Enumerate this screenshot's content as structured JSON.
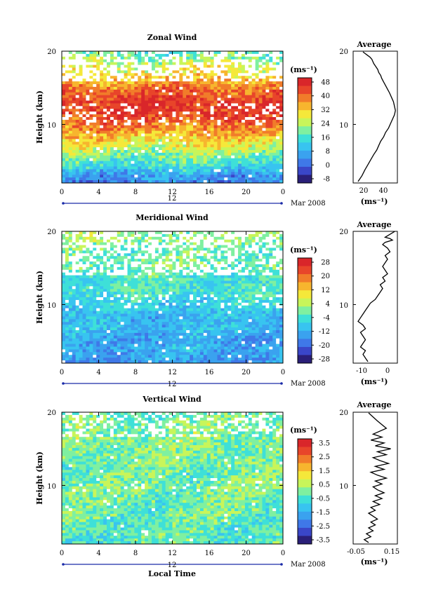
{
  "colors": {
    "palette": [
      "#2a1f78",
      "#3a46c8",
      "#3f78e8",
      "#3aa2ef",
      "#38c4f0",
      "#3ee0d8",
      "#7ff0a0",
      "#c8f55a",
      "#f5e83a",
      "#f7b52e",
      "#f17c2a",
      "#e8452a",
      "#d9262a"
    ]
  },
  "panels": [
    {
      "title": "Zonal Wind",
      "ylabel": "Height (km)",
      "yticks": [
        "20",
        "10"
      ],
      "xticks": [
        "0",
        "4",
        "8",
        "12",
        "16",
        "20",
        "0"
      ],
      "date_mid": "12",
      "date_right": "Mar 2008",
      "unit": "(ms⁻¹)",
      "cbar_ticks": [
        "48",
        "40",
        "32",
        "24",
        "16",
        "8",
        "0",
        "-8"
      ],
      "avg_title": "Average",
      "avg_xticks": [
        "20",
        "40"
      ],
      "avg_unit": "(ms⁻¹)"
    },
    {
      "title": "Meridional Wind",
      "ylabel": "Height (km)",
      "yticks": [
        "20",
        "10"
      ],
      "xticks": [
        "0",
        "4",
        "8",
        "12",
        "16",
        "20",
        "0"
      ],
      "date_mid": "12",
      "date_right": "Mar 2008",
      "unit": "(ms⁻¹)",
      "cbar_ticks": [
        "28",
        "20",
        "12",
        "4",
        "-4",
        "-12",
        "-20",
        "-28"
      ],
      "avg_title": "Average",
      "avg_xticks": [
        "-10",
        "0"
      ],
      "avg_unit": "(ms⁻¹)"
    },
    {
      "title": "Vertical Wind",
      "ylabel": "Height (km)",
      "yticks": [
        "20",
        "10"
      ],
      "xticks": [
        "0",
        "4",
        "8",
        "12",
        "16",
        "20",
        "0"
      ],
      "date_mid": "12",
      "date_right": "Mar 2008",
      "unit": "(ms⁻¹)",
      "cbar_ticks": [
        "3.5",
        "2.5",
        "1.5",
        "0.5",
        "-0.5",
        "-1.5",
        "-2.5",
        "-3.5"
      ],
      "avg_title": "Average",
      "avg_xticks": [
        "-0.05",
        "0.15"
      ],
      "avg_unit": "(ms⁻¹)"
    }
  ],
  "xlabel": "Local Time",
  "chart_data": [
    {
      "type": "heatmap",
      "title": "Zonal Wind",
      "xlabel": "Local Time",
      "ylabel": "Height (km)",
      "xlim": [
        0,
        24
      ],
      "ylim": [
        2,
        20
      ],
      "clim": [
        -12,
        52
      ],
      "colorbar_label": "(ms⁻¹)",
      "missing": "white",
      "profile_by_height": {
        "height_km": [
          2,
          3,
          4,
          5,
          6,
          7,
          8,
          9,
          10,
          11,
          12,
          13,
          14,
          15,
          16,
          17,
          18,
          19,
          20
        ],
        "value": [
          2,
          5,
          12,
          17,
          22,
          27,
          31,
          36,
          40,
          45,
          47,
          46,
          44,
          40,
          35,
          30,
          26,
          21,
          16
        ]
      }
    },
    {
      "type": "line",
      "title": "Average",
      "xlabel": "(ms⁻¹)",
      "ylabel": "Height (km)",
      "xlim": [
        5,
        50
      ],
      "ylim": [
        2,
        20
      ],
      "series": [
        {
          "x": [
            10,
            14,
            17,
            20,
            23,
            26,
            29,
            31,
            33,
            36,
            38,
            41,
            43,
            45,
            47,
            48,
            47,
            46,
            44,
            42,
            40,
            38,
            36,
            34,
            33,
            31,
            30,
            28,
            26,
            25,
            24,
            22,
            20,
            18,
            17,
            16,
            15
          ],
          "y": [
            2.2,
            3,
            3.8,
            4.5,
            5.2,
            5.9,
            6.5,
            7.1,
            7.7,
            8.3,
            8.9,
            9.5,
            10.1,
            10.7,
            11.3,
            11.9,
            12.5,
            13.1,
            13.7,
            14.3,
            14.8,
            15.3,
            15.8,
            16.3,
            16.7,
            17.1,
            17.5,
            17.9,
            18.3,
            18.6,
            18.9,
            19.2,
            19.4,
            19.6,
            19.7,
            19.8,
            19.9
          ]
        }
      ]
    },
    {
      "type": "heatmap",
      "title": "Meridional Wind",
      "xlabel": "Local Time",
      "ylabel": "Height (km)",
      "xlim": [
        0,
        24
      ],
      "ylim": [
        2,
        20
      ],
      "clim": [
        -32,
        32
      ],
      "colorbar_label": "(ms⁻¹)",
      "missing": "white",
      "profile_by_height": {
        "height_km": [
          2,
          3,
          4,
          5,
          6,
          7,
          8,
          9,
          10,
          11,
          12,
          13,
          14,
          15,
          16,
          17,
          18,
          19,
          20
        ],
        "value": [
          -16,
          -14,
          -13,
          -14,
          -12,
          -11,
          -12,
          -10,
          -8,
          -6,
          -4,
          -5,
          -3,
          -1,
          -1,
          -2,
          0,
          2,
          3
        ]
      }
    },
    {
      "type": "line",
      "title": "Average",
      "xlabel": "(ms⁻¹)",
      "ylabel": "Height (km)",
      "xlim": [
        -14,
        4
      ],
      "ylim": [
        2,
        20
      ],
      "series": [
        {
          "x": [
            -8,
            -9,
            -10,
            -9,
            -11,
            -10,
            -9,
            -10,
            -11,
            -9,
            -10,
            -12,
            -11,
            -10,
            -9,
            -8,
            -7,
            -5,
            -4,
            -3,
            -2,
            -3,
            -1,
            -2,
            0,
            -1,
            -2,
            -1,
            0,
            -1,
            1,
            0,
            -2,
            -1,
            2,
            1,
            -1,
            0,
            1,
            2,
            3
          ],
          "y": [
            2.2,
            2.7,
            3.2,
            3.7,
            4.2,
            4.7,
            5.2,
            5.7,
            6.2,
            6.7,
            7.2,
            7.7,
            8.2,
            8.7,
            9.2,
            9.7,
            10.2,
            10.7,
            11.2,
            11.7,
            12.2,
            12.7,
            13.2,
            13.7,
            14.2,
            14.7,
            15.2,
            15.7,
            16.2,
            16.7,
            17.2,
            17.7,
            18.2,
            18.5,
            18.8,
            19.0,
            19.2,
            19.4,
            19.6,
            19.8,
            20
          ]
        }
      ]
    },
    {
      "type": "heatmap",
      "title": "Vertical Wind",
      "xlabel": "Local Time",
      "ylabel": "Height (km)",
      "xlim": [
        0,
        24
      ],
      "ylim": [
        2,
        20
      ],
      "clim": [
        -4,
        4
      ],
      "colorbar_label": "(ms⁻¹)",
      "missing": "white",
      "profile_by_height": {
        "height_km": [
          2,
          4,
          6,
          8,
          10,
          12,
          14,
          16,
          18,
          20
        ],
        "value": [
          -0.4,
          -0.3,
          -0.2,
          -0.1,
          0.0,
          -0.1,
          0.0,
          0.1,
          0.0,
          -0.1
        ]
      }
    },
    {
      "type": "line",
      "title": "Average",
      "xlabel": "(ms⁻¹)",
      "ylabel": "Height (km)",
      "xlim": [
        -0.05,
        0.15
      ],
      "ylim": [
        2,
        20
      ],
      "series": [
        {
          "x": [
            0.02,
            0.0,
            0.03,
            0.01,
            0.04,
            0.02,
            0.05,
            0.03,
            0.06,
            0.04,
            0.02,
            0.05,
            0.03,
            0.07,
            0.04,
            0.08,
            0.05,
            0.09,
            0.06,
            0.04,
            0.08,
            0.05,
            0.1,
            0.06,
            0.03,
            0.09,
            0.05,
            0.11,
            0.07,
            0.04,
            0.1,
            0.06,
            0.12,
            0.05,
            0.09,
            0.03,
            0.08,
            0.04,
            0.1,
            0.06,
            0.02
          ],
          "y": [
            2.2,
            2.6,
            3.0,
            3.4,
            3.8,
            4.2,
            4.6,
            5.0,
            5.4,
            5.8,
            6.2,
            6.6,
            7.0,
            7.4,
            7.8,
            8.2,
            8.6,
            9.0,
            9.4,
            9.8,
            10.2,
            10.6,
            11.0,
            11.4,
            11.8,
            12.2,
            12.6,
            13.0,
            13.4,
            13.8,
            14.2,
            14.6,
            15.0,
            15.4,
            15.8,
            16.2,
            16.6,
            17.0,
            17.8,
            18.8,
            19.9
          ]
        }
      ]
    }
  ]
}
